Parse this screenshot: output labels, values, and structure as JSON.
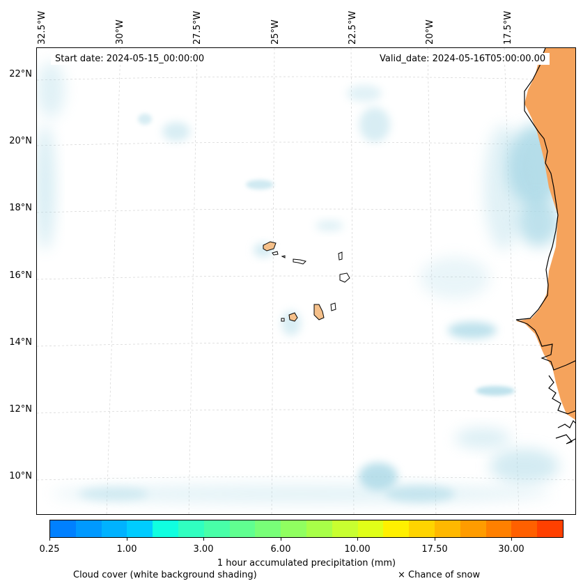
{
  "map": {
    "start_date": "Start date: 2024-05-15_00:00:00",
    "valid_date": "Valid_date: 2024-05-16T05:00:00.00",
    "lon_labels": [
      "32.5°W",
      "30°W",
      "27.5°W",
      "25°W",
      "22.5°W",
      "20°W",
      "17.5°W"
    ],
    "lat_labels": [
      "22°N",
      "20°N",
      "18°N",
      "16°N",
      "14°N",
      "12°N",
      "10°N"
    ],
    "coastline_color": "#000000",
    "land_precip_color": "#f5a35c",
    "cloud_color": "#a9d8e6",
    "gridline_color": "#cccccc"
  },
  "colorbar": {
    "colors": [
      "#0080ff",
      "#0099ff",
      "#00b2ff",
      "#00ccff",
      "#10ffe0",
      "#30ffc0",
      "#48ffa8",
      "#60ff90",
      "#78ff78",
      "#90ff60",
      "#a8ff48",
      "#c8ff30",
      "#e0ff18",
      "#fff000",
      "#ffd400",
      "#ffb800",
      "#ff9c00",
      "#ff8000",
      "#ff6000",
      "#ff4000"
    ],
    "tick_labels": [
      "0.25",
      "1.00",
      "3.00",
      "6.00",
      "10.00",
      "17.50",
      "30.00"
    ],
    "label": "1 hour accumulated precipitation (mm)"
  },
  "legend": {
    "cloud_note": "Cloud cover (white background shading)",
    "snow_note": "× Chance of snow"
  }
}
